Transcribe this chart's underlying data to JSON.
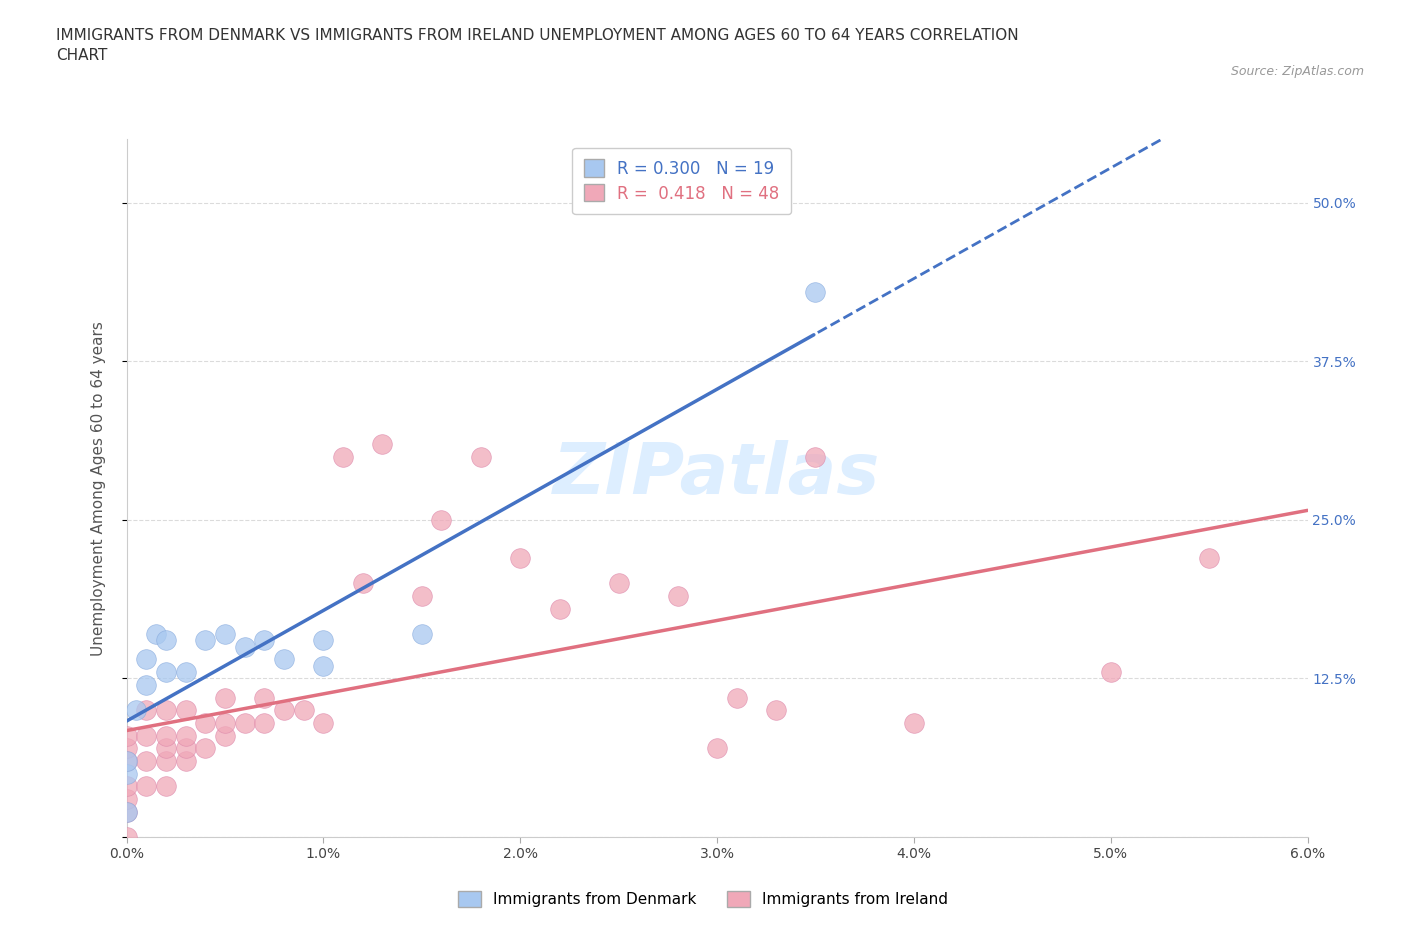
{
  "title": "IMMIGRANTS FROM DENMARK VS IMMIGRANTS FROM IRELAND UNEMPLOYMENT AMONG AGES 60 TO 64 YEARS CORRELATION\nCHART",
  "source": "Source: ZipAtlas.com",
  "ylabel": "Unemployment Among Ages 60 to 64 years",
  "xlim": [
    0.0,
    0.06
  ],
  "ylim": [
    0.0,
    0.55
  ],
  "xticks": [
    0.0,
    0.01,
    0.02,
    0.03,
    0.04,
    0.05,
    0.06
  ],
  "xticklabels": [
    "0.0%",
    "1.0%",
    "2.0%",
    "3.0%",
    "4.0%",
    "5.0%",
    "6.0%"
  ],
  "yticks": [
    0.0,
    0.125,
    0.25,
    0.375,
    0.5
  ],
  "yticklabels": [
    "",
    "12.5%",
    "25.0%",
    "37.5%",
    "50.0%"
  ],
  "denmark_color": "#a8c8f0",
  "ireland_color": "#f0a8b8",
  "denmark_edge_color": "#88aadd",
  "ireland_edge_color": "#dd88aa",
  "denmark_line_color": "#4472c4",
  "ireland_line_color": "#e07080",
  "denmark_R": 0.3,
  "denmark_N": 19,
  "ireland_R": 0.418,
  "ireland_N": 48,
  "denmark_x": [
    0.0,
    0.0,
    0.0,
    0.0005,
    0.001,
    0.001,
    0.0015,
    0.002,
    0.002,
    0.003,
    0.004,
    0.005,
    0.006,
    0.007,
    0.008,
    0.01,
    0.01,
    0.015,
    0.035
  ],
  "denmark_y": [
    0.02,
    0.05,
    0.06,
    0.1,
    0.12,
    0.14,
    0.16,
    0.13,
    0.155,
    0.13,
    0.155,
    0.16,
    0.15,
    0.155,
    0.14,
    0.155,
    0.135,
    0.16,
    0.43
  ],
  "ireland_x": [
    0.0,
    0.0,
    0.0,
    0.0,
    0.0,
    0.0,
    0.0,
    0.001,
    0.001,
    0.001,
    0.001,
    0.002,
    0.002,
    0.002,
    0.002,
    0.002,
    0.003,
    0.003,
    0.003,
    0.003,
    0.004,
    0.004,
    0.005,
    0.005,
    0.005,
    0.006,
    0.007,
    0.007,
    0.008,
    0.009,
    0.01,
    0.011,
    0.012,
    0.013,
    0.015,
    0.016,
    0.018,
    0.02,
    0.022,
    0.025,
    0.028,
    0.03,
    0.031,
    0.033,
    0.035,
    0.04,
    0.05,
    0.055
  ],
  "ireland_y": [
    0.0,
    0.02,
    0.03,
    0.04,
    0.06,
    0.07,
    0.08,
    0.04,
    0.06,
    0.08,
    0.1,
    0.04,
    0.06,
    0.07,
    0.08,
    0.1,
    0.06,
    0.07,
    0.08,
    0.1,
    0.07,
    0.09,
    0.08,
    0.09,
    0.11,
    0.09,
    0.09,
    0.11,
    0.1,
    0.1,
    0.09,
    0.3,
    0.2,
    0.31,
    0.19,
    0.25,
    0.3,
    0.22,
    0.18,
    0.2,
    0.19,
    0.07,
    0.11,
    0.1,
    0.3,
    0.09,
    0.13,
    0.22
  ],
  "background_color": "#ffffff",
  "grid_color": "#cccccc",
  "watermark_color": "#ddeeff"
}
